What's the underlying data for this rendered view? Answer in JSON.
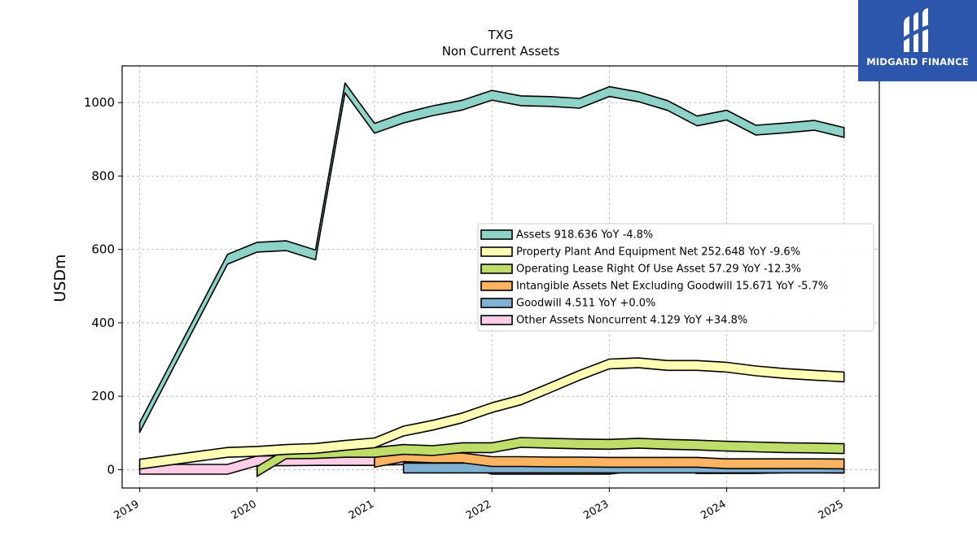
{
  "logo": {
    "text": "MIDGARD FINANCE",
    "icon": "midgard-logo-icon",
    "background": "#2b56ab"
  },
  "chart_data": {
    "type": "area",
    "title": "TXG",
    "subtitle": "Non Current  Assets",
    "ylabel": "USDm",
    "xlabel": "",
    "ylim": [
      -50,
      1100
    ],
    "xlim": [
      2018.85,
      2025.3
    ],
    "yticks": [
      0,
      200,
      400,
      600,
      800,
      1000
    ],
    "xticks": [
      "2019",
      "2020",
      "2021",
      "2022",
      "2023",
      "2024",
      "2025"
    ],
    "grid": true,
    "legend_position": "center-right",
    "series": [
      {
        "name": "Assets",
        "legend": "Assets  918.636 YoY -4.8%",
        "color": "#8dd3c7",
        "x": [
          "2019-01-01",
          "2019-10-01",
          "2020-01-01",
          "2020-04-01",
          "2020-07-01",
          "2020-10-01",
          "2021-01-01",
          "2021-04-01",
          "2021-07-01",
          "2021-10-01",
          "2022-01-01",
          "2022-04-01",
          "2022-07-01",
          "2022-10-01",
          "2023-01-01",
          "2023-04-01",
          "2023-07-01",
          "2023-10-01",
          "2024-01-01",
          "2024-04-01",
          "2024-07-01",
          "2024-10-01",
          "2025-01-01"
        ],
        "values": [
          115,
          573,
          606,
          610,
          585,
          1040,
          930,
          958,
          978,
          993,
          1020,
          1005,
          1003,
          998,
          1030,
          1016,
          992,
          950,
          966,
          925,
          931,
          938,
          918.636
        ]
      },
      {
        "name": "Property Plant And Equipment Net",
        "legend": "Property Plant And Equipment Net  252.648 YoY -9.6%",
        "color": "#ffffb3",
        "x": [
          "2019-01-01",
          "2019-10-01",
          "2020-01-01",
          "2020-04-01",
          "2020-07-01",
          "2020-10-01",
          "2021-01-01",
          "2021-04-01",
          "2021-07-01",
          "2021-10-01",
          "2022-01-01",
          "2022-04-01",
          "2022-07-01",
          "2022-10-01",
          "2023-01-01",
          "2023-04-01",
          "2023-07-01",
          "2023-10-01",
          "2024-01-01",
          "2024-04-01",
          "2024-07-01",
          "2024-10-01",
          "2025-01-01"
        ],
        "values": [
          15,
          47,
          50,
          55,
          58,
          66,
          73,
          105,
          121,
          141,
          169,
          190,
          223,
          257,
          288,
          291,
          284,
          284,
          279,
          269,
          262,
          257,
          252.648
        ]
      },
      {
        "name": "Operating Lease Right Of Use Asset",
        "legend": "Operating Lease Right Of Use Asset  57.29 YoY -12.3%",
        "color": "#bedd6a",
        "x": [
          "2020-01-01",
          "2020-04-01",
          "2020-07-01",
          "2020-10-01",
          "2021-01-01",
          "2021-04-01",
          "2021-07-01",
          "2021-10-01",
          "2022-01-01",
          "2022-04-01",
          "2022-07-01",
          "2022-10-01",
          "2023-01-01",
          "2023-04-01",
          "2023-07-01",
          "2023-10-01",
          "2024-01-01",
          "2024-04-01",
          "2024-07-01",
          "2024-10-01",
          "2025-01-01"
        ],
        "values": [
          -5,
          43,
          44,
          47,
          47,
          55,
          52,
          60,
          60,
          74,
          72,
          70,
          69,
          72,
          69,
          67,
          64,
          62,
          60,
          59,
          57.29
        ]
      },
      {
        "name": "Intangible Assets Net Excluding Goodwill",
        "legend": "Intangible Assets Net Excluding Goodwill  15.671 YoY -5.7%",
        "color": "#fdb462",
        "x": [
          "2021-01-01",
          "2021-04-01",
          "2021-07-01",
          "2021-10-01",
          "2022-01-01",
          "2022-04-01",
          "2022-07-01",
          "2022-10-01",
          "2023-01-01",
          "2023-04-01",
          "2023-07-01",
          "2023-10-01",
          "2024-01-01",
          "2024-04-01",
          "2024-07-01",
          "2024-10-01",
          "2025-01-01"
        ],
        "values": [
          20,
          35,
          32,
          32,
          22,
          22,
          21,
          21,
          20,
          20,
          20,
          20,
          16,
          16,
          16,
          16,
          15.671
        ]
      },
      {
        "name": "Goodwill",
        "legend": "Goodwill  4.511 YoY +0.0%",
        "color": "#80b1d3",
        "x": [
          "2021-04-01",
          "2021-07-01",
          "2021-10-01",
          "2022-01-01",
          "2022-04-01",
          "2022-07-01",
          "2022-10-01",
          "2023-01-01",
          "2023-04-01",
          "2023-07-01",
          "2023-10-01",
          "2024-01-01",
          "2024-04-01",
          "2024-07-01",
          "2024-10-01",
          "2025-01-01"
        ],
        "values": [
          4.511,
          4.511,
          4.511,
          4.511,
          4.511,
          4.511,
          4.511,
          4.511,
          4.511,
          4.511,
          4.511,
          4.511,
          4.511,
          4.511,
          4.511,
          4.511
        ]
      },
      {
        "name": "Other Assets Noncurrent",
        "legend": "Other Assets Noncurrent  4.129 YoY +34.8%",
        "color": "#fccde5",
        "x": [
          "2019-01-01",
          "2019-10-01",
          "2020-01-01",
          "2020-04-01",
          "2020-07-01",
          "2020-10-01",
          "2021-01-01",
          "2021-04-01",
          "2021-07-01",
          "2021-10-01",
          "2022-01-01",
          "2022-04-01",
          "2022-07-01",
          "2022-10-01",
          "2023-01-01",
          "2023-04-01",
          "2023-07-01",
          "2023-10-01",
          "2024-01-01",
          "2024-04-01",
          "2024-07-01",
          "2024-10-01",
          "2025-01-01"
        ],
        "values": [
          1,
          1,
          24,
          24,
          25,
          25,
          25,
          27,
          26,
          25,
          1,
          1,
          1,
          1,
          1,
          11,
          20,
          3,
          3,
          3,
          5,
          5,
          4.129
        ]
      }
    ]
  }
}
